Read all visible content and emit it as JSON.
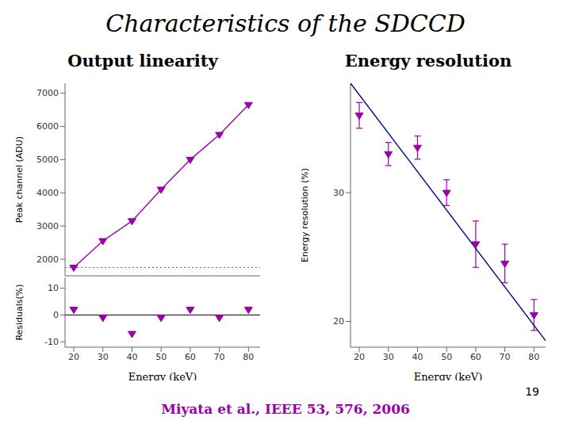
{
  "title": "Characteristics of the SDCCD",
  "annotations": [
    "Miyata et al., IEEE 53, 576, 2006",
    "19"
  ],
  "chart_data": [
    {
      "type": "line",
      "subtitle": "Output linearity",
      "x": [
        20,
        30,
        40,
        50,
        60,
        70,
        80
      ],
      "values": [
        1750,
        2550,
        3150,
        4100,
        5000,
        5750,
        6650
      ],
      "color": "#9900aa",
      "marker": "triangle_down",
      "ylabel": "Peak channel (ADU)",
      "xlim": [
        17,
        84
      ],
      "xticks": [
        20,
        30,
        40,
        50,
        60,
        70,
        80
      ],
      "ylim": [
        1500,
        7300
      ],
      "yticks": [
        2000,
        3000,
        4000,
        5000,
        6000,
        7000
      ],
      "tick_labels": "y",
      "hlines": [
        {
          "value": 1750,
          "line_style": "dotted"
        }
      ]
    },
    {
      "type": "scatter",
      "x": [
        20,
        30,
        40,
        50,
        60,
        70,
        80
      ],
      "values": [
        2,
        -1,
        -7,
        -1,
        2,
        -1,
        2
      ],
      "color": "#9900aa",
      "marker": "triangle_down",
      "xlabel": "Energy (keV)",
      "ylabel": "Residuals(%)",
      "xlim": [
        17,
        84
      ],
      "xticks": [
        20,
        30,
        40,
        50,
        60,
        70,
        80
      ],
      "ylim": [
        -12,
        14
      ],
      "yticks": [
        -10,
        0,
        10
      ],
      "hlines": [
        {
          "value": 0,
          "line_style": "solid"
        }
      ]
    },
    {
      "type": "scatter",
      "subtitle": "Energy resolution",
      "series": [
        {
          "type": "line",
          "x": [
            17,
            84
          ],
          "values": [
            38.5,
            18.5
          ],
          "color": "#00008B"
        },
        {
          "type": "scatter",
          "x": [
            20,
            30,
            40,
            50,
            60,
            70,
            80
          ],
          "values": [
            36.0,
            33.0,
            33.5,
            30.0,
            26.0,
            24.5,
            20.5
          ],
          "errors": [
            1.0,
            0.9,
            0.9,
            1.0,
            1.8,
            1.5,
            1.2
          ],
          "color": "#9900aa",
          "marker": "triangle_down"
        }
      ],
      "xlabel": "Energy (keV)",
      "ylabel": "Energy resolution (%)",
      "xlim": [
        17,
        84
      ],
      "xticks": [
        20,
        30,
        40,
        50,
        60,
        70,
        80
      ],
      "ylim": [
        18.0,
        38.5
      ],
      "yticks": [
        20,
        30
      ]
    }
  ]
}
